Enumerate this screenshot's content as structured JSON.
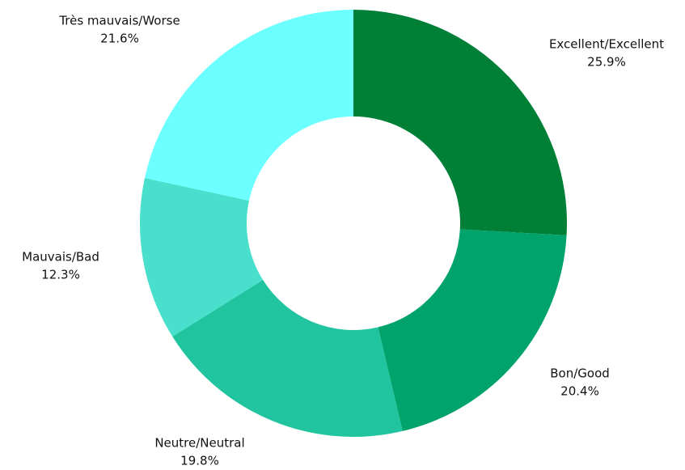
{
  "chart_data": {
    "type": "donut",
    "categories": [
      "Excellent/Excellent",
      "Bon/Good",
      "Neutre/Neutral",
      "Mauvais/Bad",
      "Très mauvais/Worse"
    ],
    "values": [
      25.9,
      20.4,
      19.8,
      12.3,
      21.6
    ],
    "value_labels": [
      "25.9%",
      "20.4%",
      "19.8%",
      "12.3%",
      "21.6%"
    ],
    "colors": [
      "#008037",
      "#00a36c",
      "#20c49e",
      "#48e0cc",
      "#6bffff"
    ]
  }
}
